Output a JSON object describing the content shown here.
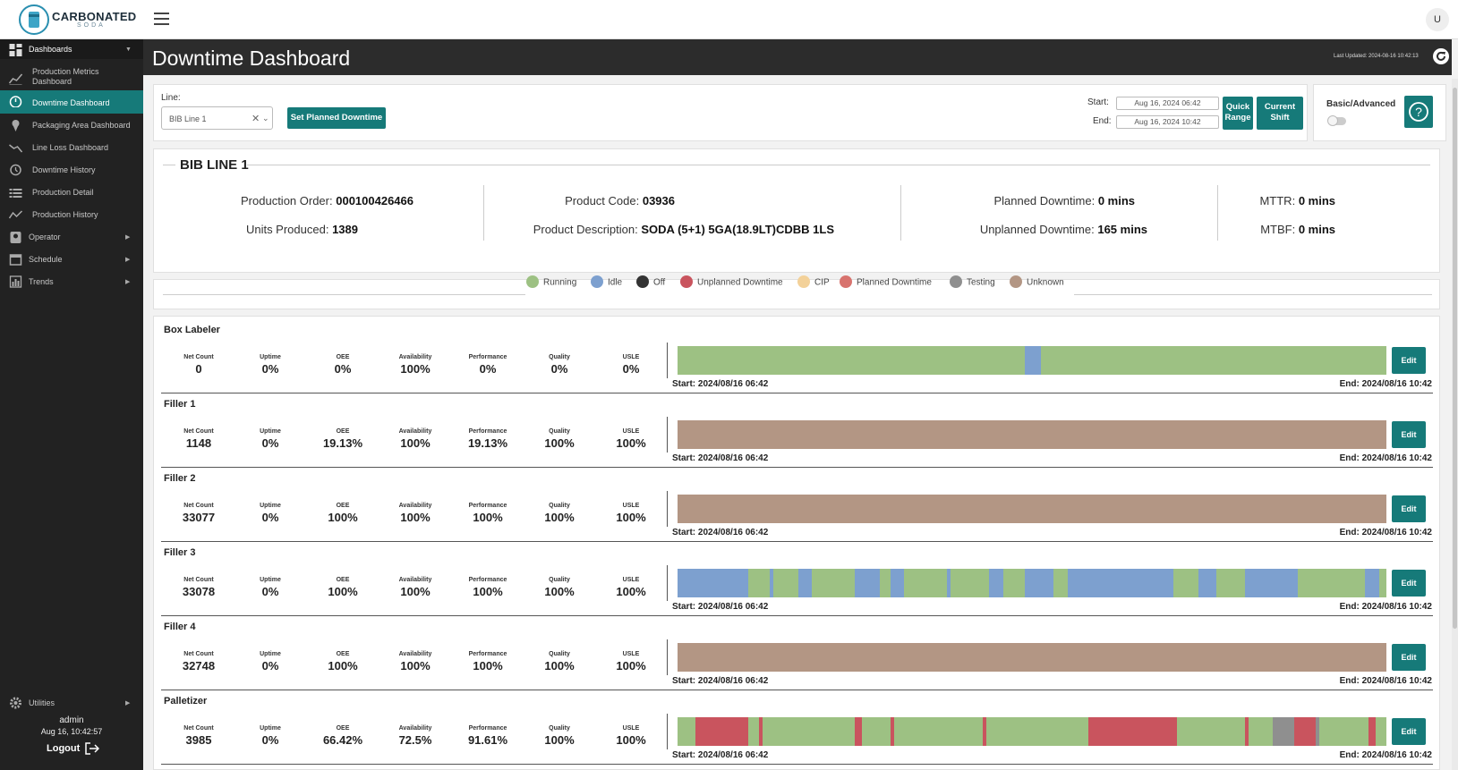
{
  "brand": {
    "name": "CARBONATED",
    "sub": "SODA"
  },
  "user_avatar": "U",
  "sidebar": {
    "items": [
      {
        "label": "Dashboards",
        "icon": "dashboard-icon",
        "has_arrow": true
      },
      {
        "label": "Production Metrics Dashboard",
        "icon": "chart-line-icon"
      },
      {
        "label": "Downtime Dashboard",
        "icon": "stopwatch-icon"
      },
      {
        "label": "Packaging Area Dashboard",
        "icon": "map-pin-icon"
      },
      {
        "label": "Line Loss Dashboard",
        "icon": "trend-down-icon"
      },
      {
        "label": "Downtime History",
        "icon": "history-icon"
      },
      {
        "label": "Production Detail",
        "icon": "list-icon"
      },
      {
        "label": "Production History",
        "icon": "trend-icon"
      },
      {
        "label": "Operator",
        "icon": "operator-icon",
        "has_arrow": true
      },
      {
        "label": "Schedule",
        "icon": "calendar-icon",
        "has_arrow": true
      },
      {
        "label": "Trends",
        "icon": "bar-chart-icon",
        "has_arrow": true
      },
      {
        "label": "Utilities",
        "icon": "gear-icon",
        "has_arrow": true
      }
    ],
    "user": "admin",
    "datetime": "Aug 16, 10:42:57",
    "logout": "Logout"
  },
  "header": {
    "title": "Downtime Dashboard",
    "last_updated": "Last Updated: 2024-08-16 10:42:13"
  },
  "filters": {
    "line_label": "Line:",
    "line_value": "BIB Line 1",
    "set_planned_btn": "Set Planned Downtime",
    "start_label": "Start:",
    "start_value": "Aug 16, 2024 06:42",
    "end_label": "End:",
    "end_value": "Aug 16, 2024 10:42",
    "quick_range": "Quick Range",
    "current_shift": "Current Shift",
    "basic_advanced": "Basic/Advanced"
  },
  "line_info": {
    "title": "BIB LINE 1",
    "production_order_label": "Production Order:",
    "production_order": "000100426466",
    "units_produced_label": "Units Produced:",
    "units_produced": "1389",
    "product_code_label": "Product Code:",
    "product_code": "03936",
    "product_desc_label": "Product Description:",
    "product_desc": "SODA (5+1) 5GA(18.9LT)CDBB 1LS",
    "planned_label": "Planned Downtime:",
    "planned": "0 mins",
    "unplanned_label": "Unplanned Downtime:",
    "unplanned": "165 mins",
    "mttr_label": "MTTR:",
    "mttr": "0 mins",
    "mtbf_label": "MTBF:",
    "mtbf": "0 mins"
  },
  "legend": [
    {
      "label": "Running",
      "color": "#9dc183"
    },
    {
      "label": "Idle",
      "color": "#7da0cf"
    },
    {
      "label": "Off",
      "color": "#333333"
    },
    {
      "label": "Unplanned Downtime",
      "color": "#c9545e"
    },
    {
      "label": "CIP",
      "color": "#f3d199"
    },
    {
      "label": "Planned Downtime",
      "color": "#d8736e"
    },
    {
      "label": "Testing",
      "color": "#8f8f8f"
    },
    {
      "label": "Unknown",
      "color": "#b39684"
    }
  ],
  "kpi_labels": [
    "Net Count",
    "Uptime",
    "OEE",
    "Availability",
    "Performance",
    "Quality",
    "USLE"
  ],
  "edit_label": "Edit",
  "machines": [
    {
      "name": "Box Labeler",
      "values": [
        "0",
        "0%",
        "0%",
        "100%",
        "0%",
        "0%",
        "0%"
      ],
      "start": "Start: 2024/08/16 06:42",
      "end": "End: 2024/08/16 10:42",
      "timeline": [
        [
          "#9dc183",
          0,
          0.49
        ],
        [
          "#7da0cf",
          0.49,
          0.512
        ],
        [
          "#9dc183",
          0.512,
          1
        ]
      ]
    },
    {
      "name": "Filler 1",
      "values": [
        "1148",
        "0%",
        "19.13%",
        "100%",
        "19.13%",
        "100%",
        "100%"
      ],
      "start": "Start: 2024/08/16 06:42",
      "end": "End: 2024/08/16 10:42",
      "timeline": [
        [
          "#b39684",
          0,
          1
        ]
      ]
    },
    {
      "name": "Filler 2",
      "values": [
        "33077",
        "0%",
        "100%",
        "100%",
        "100%",
        "100%",
        "100%"
      ],
      "start": "Start: 2024/08/16 06:42",
      "end": "End: 2024/08/16 10:42",
      "timeline": [
        [
          "#b39684",
          0,
          1
        ]
      ]
    },
    {
      "name": "Filler 3",
      "values": [
        "33078",
        "0%",
        "100%",
        "100%",
        "100%",
        "100%",
        "100%"
      ],
      "start": "Start: 2024/08/16 06:42",
      "end": "End: 2024/08/16 10:42",
      "timeline": [
        [
          "#7da0cf",
          0,
          0.1
        ],
        [
          "#9dc183",
          0.1,
          0.13
        ],
        [
          "#7da0cf",
          0.13,
          0.135
        ],
        [
          "#9dc183",
          0.135,
          0.17
        ],
        [
          "#7da0cf",
          0.17,
          0.19
        ],
        [
          "#9dc183",
          0.19,
          0.25
        ],
        [
          "#7da0cf",
          0.25,
          0.285
        ],
        [
          "#9dc183",
          0.285,
          0.3
        ],
        [
          "#7da0cf",
          0.3,
          0.32
        ],
        [
          "#9dc183",
          0.32,
          0.38
        ],
        [
          "#7da0cf",
          0.38,
          0.385
        ],
        [
          "#9dc183",
          0.385,
          0.44
        ],
        [
          "#7da0cf",
          0.44,
          0.46
        ],
        [
          "#9dc183",
          0.46,
          0.49
        ],
        [
          "#7da0cf",
          0.49,
          0.53
        ],
        [
          "#9dc183",
          0.53,
          0.55
        ],
        [
          "#7da0cf",
          0.55,
          0.7
        ],
        [
          "#9dc183",
          0.7,
          0.735
        ],
        [
          "#7da0cf",
          0.735,
          0.76
        ],
        [
          "#9dc183",
          0.76,
          0.8
        ],
        [
          "#7da0cf",
          0.8,
          0.875
        ],
        [
          "#9dc183",
          0.875,
          0.97
        ],
        [
          "#7da0cf",
          0.97,
          0.99
        ],
        [
          "#9dc183",
          0.99,
          1
        ]
      ]
    },
    {
      "name": "Filler 4",
      "values": [
        "32748",
        "0%",
        "100%",
        "100%",
        "100%",
        "100%",
        "100%"
      ],
      "start": "Start: 2024/08/16 06:42",
      "end": "End: 2024/08/16 10:42",
      "timeline": [
        [
          "#b39684",
          0,
          1
        ]
      ]
    },
    {
      "name": "Palletizer",
      "values": [
        "3985",
        "0%",
        "66.42%",
        "72.5%",
        "91.61%",
        "100%",
        "100%"
      ],
      "start": "Start: 2024/08/16 06:42",
      "end": "End: 2024/08/16 10:42",
      "timeline": [
        [
          "#9dc183",
          0,
          0.025
        ],
        [
          "#c9545e",
          0.025,
          0.1
        ],
        [
          "#9dc183",
          0.1,
          0.115
        ],
        [
          "#c9545e",
          0.115,
          0.12
        ],
        [
          "#9dc183",
          0.12,
          0.25
        ],
        [
          "#c9545e",
          0.25,
          0.26
        ],
        [
          "#9dc183",
          0.26,
          0.3
        ],
        [
          "#c9545e",
          0.3,
          0.305
        ],
        [
          "#9dc183",
          0.305,
          0.43
        ],
        [
          "#c9545e",
          0.43,
          0.435
        ],
        [
          "#9dc183",
          0.435,
          0.58
        ],
        [
          "#c9545e",
          0.58,
          0.705
        ],
        [
          "#9dc183",
          0.705,
          0.8
        ],
        [
          "#c9545e",
          0.8,
          0.805
        ],
        [
          "#9dc183",
          0.805,
          0.84
        ],
        [
          "#8f8f8f",
          0.84,
          0.87
        ],
        [
          "#c9545e",
          0.87,
          0.9
        ],
        [
          "#8f8f8f",
          0.9,
          0.905
        ],
        [
          "#9dc183",
          0.905,
          0.975
        ],
        [
          "#c9545e",
          0.975,
          0.985
        ],
        [
          "#9dc183",
          0.985,
          1
        ]
      ]
    }
  ]
}
